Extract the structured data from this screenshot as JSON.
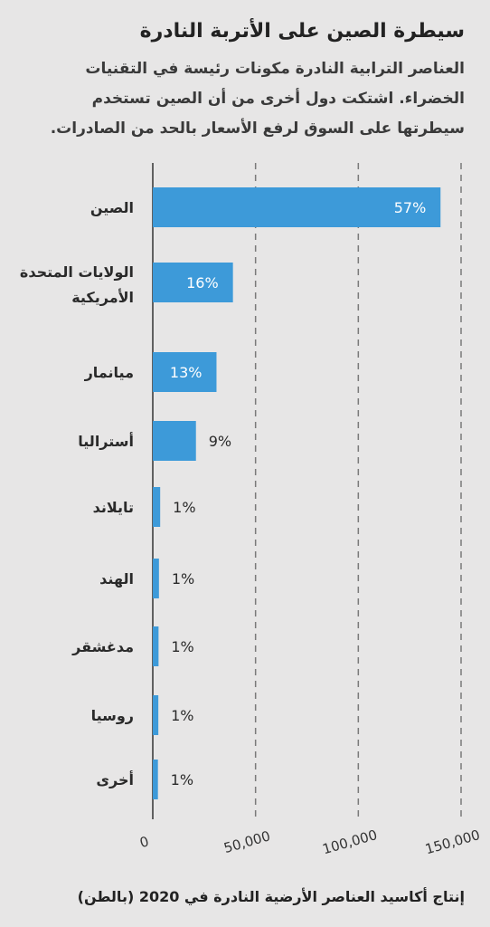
{
  "header": {
    "title": "سيطرة الصين على الأتربة النادرة",
    "subtitle": "العناصر الترابية النادرة مكونات رئيسة في التقنيات الخضراء. اشتكت دول أخرى من أن الصين تستخدم سيطرتها على السوق لرفع الأسعار بالحد من الصادرات."
  },
  "footer": {
    "caption": "إنتاج أكاسيد العناصر الأرضية النادرة في 2020 (بالطن)"
  },
  "colors": {
    "bar": "#3d9ad9",
    "background": "#e7e6e6",
    "grid": "#7a7a7a"
  },
  "chart_data": {
    "type": "bar",
    "orientation": "horizontal",
    "categories": [
      "الصين",
      "الولايات المتحدة الأمريكية",
      "ميانمار",
      "أستراليا",
      "تايلاند",
      "الهند",
      "مدغشقر",
      "روسيا",
      "أخرى"
    ],
    "values": [
      140000,
      39000,
      31000,
      21000,
      3600,
      3000,
      2800,
      2700,
      2500
    ],
    "data_labels": [
      "57%",
      "16%",
      "13%",
      "9%",
      "1%",
      "1%",
      "1%",
      "1%",
      "1%"
    ],
    "xlim": [
      0,
      150000
    ],
    "x_ticks": [
      0,
      50000,
      100000,
      150000
    ],
    "x_tick_labels": [
      "0",
      "50,000",
      "100,000",
      "150,000"
    ],
    "xlabel": "إنتاج أكاسيد العناصر الأرضية النادرة في 2020 (بالطن)",
    "ylabel": "",
    "grid": "vertical dashed"
  }
}
